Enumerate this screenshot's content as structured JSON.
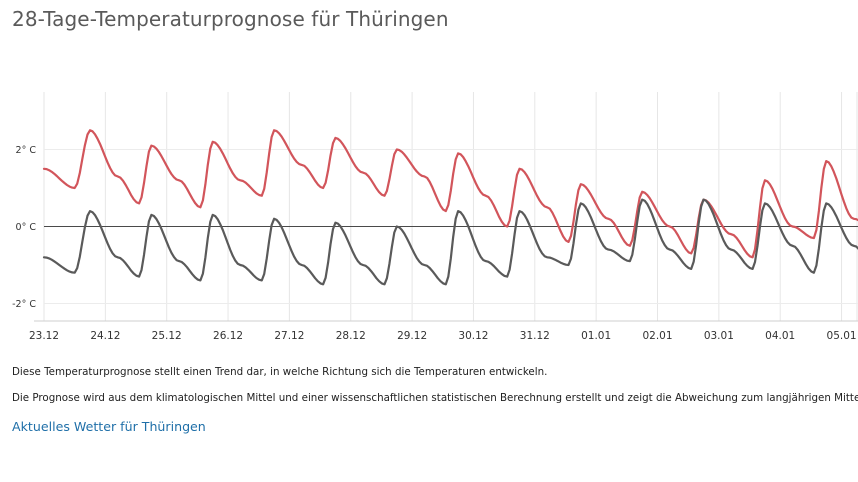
{
  "page": {
    "title": "28-Tage-Temperaturprognose für Thüringen",
    "description_1": "Diese Temperaturprognose stellt einen Trend dar, in welche Richtung sich die Temperaturen entwickeln.",
    "description_2": "Die Prognose wird aus dem klimatologischen Mittel und einer wissenschaftlichen statistischen Berechnung erstellt und zeigt die Abweichung zum langjährigen Mittel!",
    "link_label": "Aktuelles Wetter für Thüringen"
  },
  "chart_data": {
    "type": "line",
    "title": "",
    "xlabel": "",
    "ylabel": "",
    "grid": true,
    "x_range": [
      0,
      13.6
    ],
    "ylim": [
      -2.6,
      3.6
    ],
    "categories": [
      "23.12",
      "24.12",
      "25.12",
      "26.12",
      "27.12",
      "28.12",
      "29.12",
      "30.12",
      "31.12",
      "01.01",
      "02.01",
      "03.01",
      "04.01",
      "05.01"
    ],
    "y_ticks": [
      {
        "value": 2,
        "label": "2° C"
      },
      {
        "value": 0,
        "label": "0° C"
      },
      {
        "value": -2,
        "label": "-2° C"
      }
    ],
    "zero_line": true,
    "series": [
      {
        "color": "#d2555b",
        "x": [
          0,
          0.5,
          0.75,
          1.2,
          1.55,
          1.75,
          2.2,
          2.55,
          2.75,
          3.2,
          3.55,
          3.75,
          4.2,
          4.55,
          4.75,
          5.2,
          5.55,
          5.75,
          6.2,
          6.55,
          6.75,
          7.2,
          7.55,
          7.75,
          8.2,
          8.55,
          8.75,
          9.2,
          9.55,
          9.75,
          10.2,
          10.55,
          10.75,
          11.2,
          11.55,
          11.75,
          12.2,
          12.55,
          12.75,
          13.2,
          13.6
        ],
        "y": [
          1.5,
          1.0,
          2.5,
          1.3,
          0.6,
          2.1,
          1.2,
          0.5,
          2.2,
          1.2,
          0.8,
          2.5,
          1.6,
          1.0,
          2.3,
          1.4,
          0.8,
          2.0,
          1.3,
          0.4,
          1.9,
          0.8,
          0.0,
          1.5,
          0.5,
          -0.4,
          1.1,
          0.2,
          -0.5,
          0.9,
          0.0,
          -0.7,
          0.7,
          -0.2,
          -0.8,
          1.2,
          0.0,
          -0.3,
          1.7,
          0.2,
          -0.2
        ]
      },
      {
        "color": "#5a5a5a",
        "x": [
          0,
          0.5,
          0.75,
          1.2,
          1.55,
          1.75,
          2.2,
          2.55,
          2.75,
          3.2,
          3.55,
          3.75,
          4.2,
          4.55,
          4.75,
          5.2,
          5.55,
          5.75,
          6.2,
          6.55,
          6.75,
          7.2,
          7.55,
          7.75,
          8.2,
          8.55,
          8.75,
          9.2,
          9.55,
          9.75,
          10.2,
          10.55,
          10.75,
          11.2,
          11.55,
          11.75,
          12.2,
          12.55,
          12.75,
          13.2,
          13.6
        ],
        "y": [
          -0.8,
          -1.2,
          0.4,
          -0.8,
          -1.3,
          0.3,
          -0.9,
          -1.4,
          0.3,
          -1.0,
          -1.4,
          0.2,
          -1.0,
          -1.5,
          0.1,
          -1.0,
          -1.5,
          0.0,
          -1.0,
          -1.5,
          0.4,
          -0.9,
          -1.3,
          0.4,
          -0.8,
          -1.0,
          0.6,
          -0.6,
          -0.9,
          0.7,
          -0.6,
          -1.1,
          0.7,
          -0.6,
          -1.1,
          0.6,
          -0.5,
          -1.2,
          0.6,
          -0.5,
          -1.3
        ]
      }
    ]
  }
}
